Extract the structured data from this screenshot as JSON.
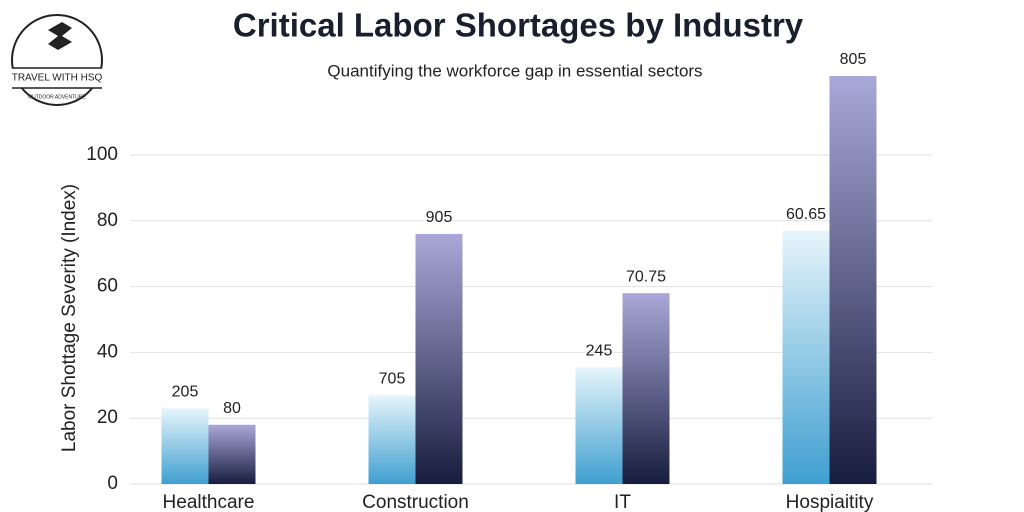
{
  "logo": {
    "title": "TRAVEL WITH HSQ",
    "subtitle": "OUTDOOR ADVENTURE"
  },
  "chart_data": {
    "type": "bar",
    "title": "Critical Labor Shortages by Industry",
    "subtitle": "Quantifying the workforce gap in essential sectors",
    "y_label": "Labor Shottage Severity (Index)",
    "categories": [
      "Healthcare",
      "Construction",
      "IT",
      "Hospiaitity"
    ],
    "series": [
      {
        "color": "#3f9fd0",
        "values": [
          23,
          27,
          35.5,
          77
        ]
      },
      {
        "color": "#171d3e",
        "values": [
          18,
          76,
          58,
          124
        ]
      }
    ],
    "annotations": [
      "205",
      "80",
      "705",
      "905",
      "245",
      "70.75",
      "60.65",
      "805"
    ],
    "ylim": [
      0,
      124
    ],
    "yticks": [
      0,
      20,
      40,
      60,
      80,
      100
    ],
    "grid": true
  }
}
